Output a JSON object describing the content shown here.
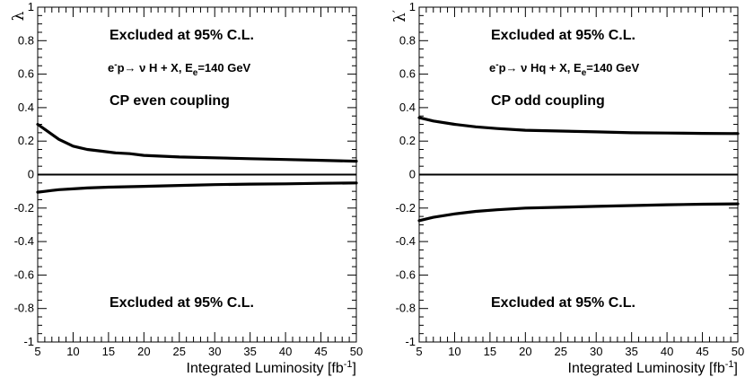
{
  "chart_data": [
    {
      "type": "line",
      "ylabel_symbol": "λ",
      "xlabel": "Integrated Luminosity [fb",
      "xlabel_sup": "-1",
      "xlabel_close": "]",
      "xlim": [
        5,
        50
      ],
      "ylim": [
        -1,
        1
      ],
      "xticks": [
        5,
        10,
        15,
        20,
        25,
        30,
        35,
        40,
        45,
        50
      ],
      "yticks": [
        -1,
        -0.8,
        -0.6,
        -0.4,
        -0.2,
        0,
        0.2,
        0.4,
        0.6,
        0.8,
        1
      ],
      "yticklabels": [
        "-1",
        "-0.8",
        "-0.6",
        "-0.4",
        "-0.2",
        "0",
        "0.2",
        "0.4",
        "0.6",
        "0.8",
        "1"
      ],
      "annotations": {
        "excluded_top": "Excluded at 95% C.L.",
        "process_pre": "e",
        "process_pre_sup": "-",
        "process_main": "p→ ν H + X, E",
        "process_sub": "e",
        "process_post": "=140 GeV",
        "coupling": "CP even coupling",
        "excluded_bottom": "Excluded at 95% C.L."
      },
      "series": [
        {
          "x": [
            5,
            6,
            7,
            8,
            9,
            10,
            11,
            12,
            14,
            16,
            18,
            20,
            25,
            30,
            35,
            40,
            45,
            50
          ],
          "y": [
            0.3,
            0.27,
            0.24,
            0.21,
            0.19,
            0.17,
            0.16,
            0.15,
            0.14,
            0.13,
            0.125,
            0.115,
            0.105,
            0.1,
            0.095,
            0.09,
            0.085,
            0.08
          ]
        },
        {
          "x": [
            5,
            6,
            7,
            8,
            10,
            12,
            15,
            20,
            25,
            30,
            35,
            40,
            45,
            50
          ],
          "y": [
            -0.105,
            -0.1,
            -0.095,
            -0.09,
            -0.085,
            -0.08,
            -0.075,
            -0.07,
            -0.065,
            -0.06,
            -0.057,
            -0.055,
            -0.052,
            -0.05
          ]
        }
      ],
      "zero_line": 0
    },
    {
      "type": "line",
      "ylabel_symbol": "λ",
      "ylabel_mark": "′",
      "xlabel": "Integrated Luminosity [fb",
      "xlabel_sup": "-1",
      "xlabel_close": "]",
      "xlim": [
        5,
        50
      ],
      "ylim": [
        -1,
        1
      ],
      "xticks": [
        5,
        10,
        15,
        20,
        25,
        30,
        35,
        40,
        45,
        50
      ],
      "yticks": [
        -1,
        -0.8,
        -0.6,
        -0.4,
        -0.2,
        0,
        0.2,
        0.4,
        0.6,
        0.8,
        1
      ],
      "yticklabels": [
        "-1",
        "-0.8",
        "-0.6",
        "-0.4",
        "-0.2",
        "0",
        "0.2",
        "0.4",
        "0.6",
        "0.8",
        "1"
      ],
      "annotations": {
        "excluded_top": "Excluded at 95% C.L.",
        "process_pre": "e",
        "process_pre_sup": "-",
        "process_main": "p→ ν Hq + X, E",
        "process_sub": "e",
        "process_post": "=140 GeV",
        "coupling": "CP odd coupling",
        "excluded_bottom": "Excluded at 95% C.L."
      },
      "series": [
        {
          "x": [
            5,
            7,
            10,
            13,
            16,
            20,
            25,
            30,
            35,
            40,
            45,
            50
          ],
          "y": [
            0.34,
            0.32,
            0.3,
            0.285,
            0.275,
            0.265,
            0.26,
            0.255,
            0.25,
            0.248,
            0.246,
            0.245
          ]
        },
        {
          "x": [
            5,
            7,
            10,
            13,
            16,
            20,
            25,
            30,
            35,
            40,
            45,
            50
          ],
          "y": [
            -0.275,
            -0.255,
            -0.235,
            -0.22,
            -0.21,
            -0.2,
            -0.195,
            -0.19,
            -0.185,
            -0.18,
            -0.177,
            -0.175
          ]
        }
      ],
      "zero_line": 0
    }
  ]
}
